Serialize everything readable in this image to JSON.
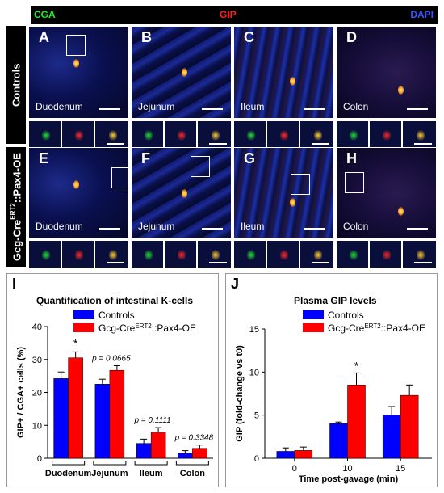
{
  "top_header": {
    "cga": "CGA",
    "gip": "GIP",
    "dapi": "DAPI"
  },
  "rows": [
    {
      "side_label": "Controls",
      "panels": [
        {
          "letter": "A",
          "tissue": "Duodenum"
        },
        {
          "letter": "B",
          "tissue": "Jejunum"
        },
        {
          "letter": "C",
          "tissue": "Ileum"
        },
        {
          "letter": "D",
          "tissue": "Colon"
        }
      ]
    },
    {
      "side_label": "Gcg-CreERT2::Pax4-OE",
      "panels": [
        {
          "letter": "E",
          "tissue": "Duodenum"
        },
        {
          "letter": "F",
          "tissue": "Jejunum"
        },
        {
          "letter": "G",
          "tissue": "Ileum"
        },
        {
          "letter": "H",
          "tissue": "Colon"
        }
      ]
    }
  ],
  "colors": {
    "control": "#0000ff",
    "pax4": "#ff0000",
    "cga": "#22ee22",
    "gip": "#ff2020",
    "dapi": "#3355ff"
  },
  "panel_I": {
    "letter": "I",
    "title": "Quantification of intestinal K-cells",
    "legend": [
      "Controls",
      "Gcg-CreERT2::Pax4-OE"
    ],
    "ylabel": "GIP+ / CGA+ cells (%)",
    "annotations": {
      "duodenum": "*",
      "jejunum": "p = 0.0665",
      "ileum": "p = 0.1111",
      "colon": "p = 0.3348"
    }
  },
  "panel_J": {
    "letter": "J",
    "title": "Plasma GIP levels",
    "legend": [
      "Controls",
      "Gcg-CreERT2::Pax4-OE"
    ],
    "ylabel": "GIP (fold-change vs t0)",
    "xlabel": "Time post-gavage (min)",
    "annotations": {
      "t10": "*"
    }
  },
  "chart_data": [
    {
      "type": "bar",
      "title": "Quantification of intestinal K-cells",
      "categories": [
        "Duodenum",
        "Jejunum",
        "Ileum",
        "Colon"
      ],
      "series": [
        {
          "name": "Controls",
          "values": [
            24.2,
            22.5,
            4.5,
            1.5
          ],
          "errors": [
            2,
            1.5,
            1.3,
            0.8
          ]
        },
        {
          "name": "Gcg-CreERT2::Pax4-OE",
          "values": [
            30.5,
            26.7,
            7.9,
            3.0
          ],
          "errors": [
            1.8,
            1.4,
            1.4,
            1.0
          ]
        }
      ],
      "ylabel": "GIP+ / CGA+ cells (%)",
      "ylim": [
        0,
        40
      ],
      "yticks": [
        0,
        10,
        20,
        30,
        40
      ],
      "legend_position": "top-left"
    },
    {
      "type": "bar",
      "title": "Plasma GIP levels",
      "x": [
        0,
        10,
        15
      ],
      "series": [
        {
          "name": "Controls",
          "values": [
            0.8,
            4.0,
            5.0
          ],
          "errors": [
            0.4,
            0.2,
            1.0
          ]
        },
        {
          "name": "Gcg-CreERT2::Pax4-OE",
          "values": [
            0.9,
            8.5,
            7.3
          ],
          "errors": [
            0.4,
            1.4,
            1.2
          ]
        }
      ],
      "xlabel": "Time post-gavage (min)",
      "ylabel": "GIP (fold-change vs t0)",
      "ylim": [
        0,
        15
      ],
      "yticks": [
        0,
        5,
        10,
        15
      ],
      "legend_position": "top-left"
    }
  ]
}
